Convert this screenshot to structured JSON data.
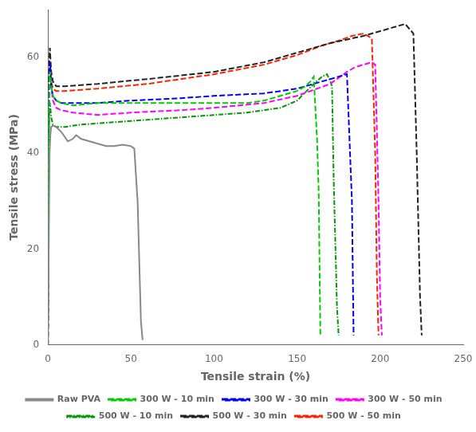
{
  "chart_data": {
    "type": "line",
    "xlabel": "Tensile strain (%)",
    "ylabel": "Tensile stress (MPa)",
    "xlim": [
      0,
      250
    ],
    "ylim": [
      0,
      70
    ],
    "xticks": [
      0,
      50,
      100,
      150,
      200,
      250
    ],
    "yticks": [
      0,
      20,
      40,
      60
    ],
    "grid": false,
    "legend": "bottom",
    "series": [
      {
        "name": "Raw PVA",
        "color": "#888888",
        "line_style": "solid",
        "x": [
          0,
          0.5,
          1.0,
          1.5,
          2.0,
          3.0,
          5.0,
          8.0,
          10.0,
          12.0,
          15.0,
          17.0,
          20.0,
          25.0,
          30.0,
          35.0,
          40.0,
          45.0,
          50.0,
          52.0,
          54.0,
          56.0,
          57.0
        ],
        "values": [
          0,
          20,
          40,
          44,
          45.5,
          45.8,
          45.5,
          44.5,
          43.5,
          42.5,
          43.0,
          43.8,
          43.0,
          42.5,
          42.0,
          41.5,
          41.5,
          41.8,
          41.5,
          41.0,
          30.0,
          5.0,
          1.0
        ]
      },
      {
        "name": "300 W - 10 min",
        "color": "#00cc00",
        "line_style": "dashed",
        "x": [
          0,
          0.3,
          0.6,
          0.9,
          1.2,
          1.5,
          2.0,
          3.0,
          5.0,
          8.0,
          15.0,
          30.0,
          50.0,
          80.0,
          100.0,
          120.0,
          130.0,
          140.0,
          150.0,
          155.0,
          158.0,
          160.0,
          162.0,
          163.0,
          164.0
        ],
        "values": [
          0,
          25,
          50,
          55,
          57,
          56,
          54,
          52,
          51,
          50.5,
          50.0,
          50.5,
          50.5,
          50.5,
          50.5,
          50.5,
          51.0,
          52.0,
          53.0,
          54.0,
          55.0,
          56.0,
          43.0,
          32.0,
          2.0
        ]
      },
      {
        "name": "300 W - 30 min",
        "color": "#0000ff",
        "line_style": "dashed",
        "x": [
          0,
          0.3,
          0.6,
          0.9,
          1.2,
          1.5,
          2.0,
          3.0,
          5.0,
          8.0,
          15.0,
          30.0,
          50.0,
          80.0,
          100.0,
          130.0,
          150.0,
          160.0,
          170.0,
          175.0,
          180.0,
          183.0,
          184.0
        ],
        "values": [
          0,
          28,
          52,
          57,
          59,
          57,
          54,
          52,
          51,
          50.5,
          50.5,
          50.5,
          51.0,
          51.5,
          52.0,
          52.5,
          53.5,
          54.5,
          55.5,
          56.0,
          56.5,
          30.0,
          2.0
        ]
      },
      {
        "name": "300 W - 50 min",
        "color": "#ff00ff",
        "line_style": "dashed",
        "x": [
          0,
          0.3,
          0.6,
          0.9,
          1.2,
          1.5,
          2.0,
          3.0,
          5.0,
          8.0,
          15.0,
          30.0,
          50.0,
          80.0,
          100.0,
          130.0,
          150.0,
          170.0,
          180.0,
          185.0,
          190.0,
          195.0,
          197.0,
          198.0,
          199.0,
          200.0,
          201.0
        ],
        "values": [
          0,
          27,
          51,
          56,
          58,
          57,
          54,
          51,
          49.5,
          49.0,
          48.5,
          48.0,
          48.5,
          49.0,
          49.5,
          50.5,
          52.0,
          54.5,
          57.0,
          58.0,
          58.5,
          59.0,
          58.5,
          45.0,
          30.0,
          10.0,
          2.0
        ]
      },
      {
        "name": "500 W - 10 min",
        "color": "#009900",
        "line_style": "dashdot",
        "x": [
          0,
          0.3,
          0.6,
          0.9,
          1.2,
          1.5,
          2.0,
          3.0,
          5.0,
          10.0,
          20.0,
          40.0,
          60.0,
          80.0,
          100.0,
          120.0,
          140.0,
          150.0,
          160.0,
          165.0,
          168.0,
          170.0,
          171.0,
          172.0,
          174.0,
          175.0
        ],
        "values": [
          0,
          22,
          44,
          49,
          50.5,
          49.5,
          47.5,
          46.0,
          45.5,
          45.5,
          46.0,
          46.5,
          47.0,
          47.5,
          48.0,
          48.5,
          49.5,
          51.0,
          54.5,
          56.0,
          56.5,
          55.0,
          54.0,
          35.0,
          8.0,
          2.0
        ]
      },
      {
        "name": "500 W - 30 min",
        "color": "#222222",
        "line_style": "dashed",
        "x": [
          0,
          0.3,
          0.6,
          0.9,
          1.2,
          1.5,
          2.0,
          3.0,
          5.0,
          10.0,
          30.0,
          60.0,
          100.0,
          130.0,
          150.0,
          170.0,
          190.0,
          200.0,
          210.0,
          215.0,
          220.0,
          222.0,
          224.0,
          225.0
        ],
        "values": [
          0,
          30,
          55,
          60,
          62,
          60,
          57,
          55,
          54.0,
          54.0,
          54.5,
          55.5,
          57.0,
          59.0,
          61.0,
          63.0,
          64.5,
          65.5,
          66.5,
          67.0,
          65.0,
          40.0,
          10.0,
          2.0
        ]
      },
      {
        "name": "500 W - 50 min",
        "color": "#ff2200",
        "line_style": "dashed",
        "x": [
          0,
          0.3,
          0.6,
          0.9,
          1.2,
          1.5,
          2.0,
          3.0,
          5.0,
          10.0,
          30.0,
          60.0,
          100.0,
          130.0,
          150.0,
          165.0,
          175.0,
          183.0,
          190.0,
          195.0,
          197.0,
          198.0,
          199.0
        ],
        "values": [
          0,
          28,
          53,
          57,
          59,
          58,
          55,
          53.5,
          53.0,
          53.0,
          53.5,
          54.5,
          56.5,
          58.5,
          60.5,
          62.5,
          63.5,
          64.5,
          65.0,
          64.0,
          40.0,
          15.0,
          2.0
        ]
      }
    ]
  }
}
